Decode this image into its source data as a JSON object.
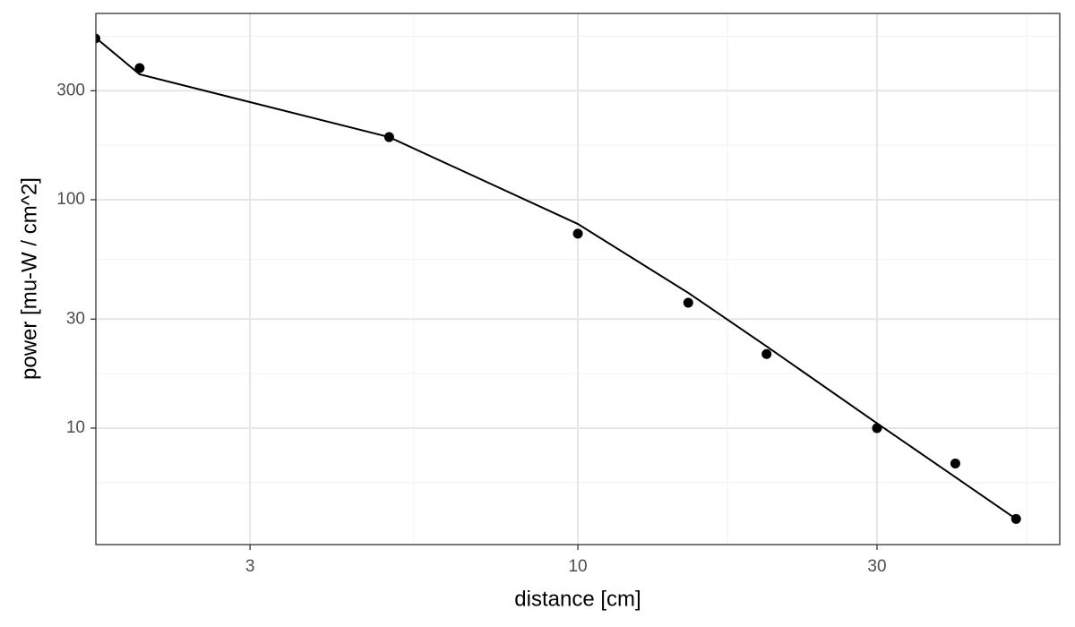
{
  "chart_data": {
    "type": "scatter",
    "x_label": "distance [cm]",
    "y_label": "power [mu-W / cm^2]",
    "x": [
      1.7,
      2,
      5,
      10,
      15,
      20,
      30,
      40,
      50
    ],
    "series": [
      {
        "style": "points",
        "color": "#000000",
        "values": [
          508,
          377,
          188,
          71,
          35.4,
          21.1,
          10,
          7.0,
          4.0
        ]
      },
      {
        "style": "line",
        "color": "#000000",
        "values": [
          513,
          354,
          188,
          78.3,
          39.1,
          22.8,
          10.5,
          6.1,
          4.0
        ]
      }
    ],
    "xlim": [
      1.703,
      58.7
    ],
    "ylim": [
      3.09,
      654
    ],
    "xticks": [
      3,
      10,
      30
    ],
    "yticks": [
      10,
      30,
      100,
      300
    ],
    "log_x": true,
    "log_y": true,
    "grid": true
  }
}
